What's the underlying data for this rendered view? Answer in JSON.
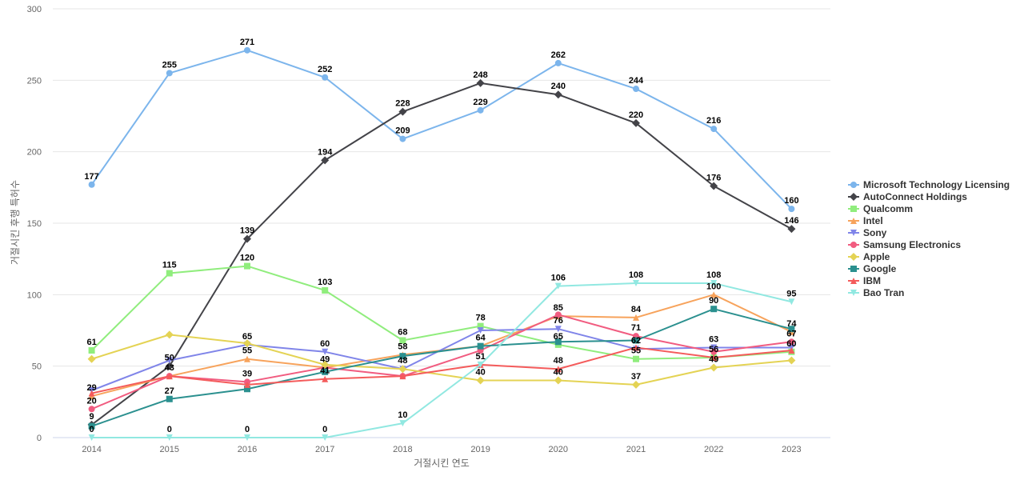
{
  "chart_data": {
    "type": "line",
    "title": "",
    "xlabel": "거절시킨 연도",
    "ylabel": "거절시킨 후행 특허수",
    "categories": [
      "2014",
      "2015",
      "2016",
      "2017",
      "2018",
      "2019",
      "2020",
      "2021",
      "2022",
      "2023"
    ],
    "ylim": [
      0,
      300
    ],
    "yticks": [
      0,
      50,
      100,
      150,
      200,
      250,
      300
    ],
    "grid": true,
    "legend_position": "right",
    "data_labels": true,
    "series": [
      {
        "name": "Microsoft Technology Licensing",
        "color": "#7cb5ec",
        "marker": "circle",
        "values": [
          177,
          255,
          271,
          252,
          209,
          229,
          262,
          244,
          216,
          160
        ]
      },
      {
        "name": "AutoConnect Holdings",
        "color": "#434348",
        "marker": "diamond",
        "values": [
          9,
          50,
          139,
          194,
          228,
          248,
          240,
          220,
          176,
          146
        ]
      },
      {
        "name": "Qualcomm",
        "color": "#90ed7d",
        "marker": "square",
        "values": [
          61,
          115,
          120,
          103,
          68,
          78,
          65,
          55,
          56,
          60
        ]
      },
      {
        "name": "Intel",
        "color": "#f7a35c",
        "marker": "triangle",
        "values": [
          29,
          43,
          55,
          49,
          58,
          64,
          85,
          84,
          100,
          74
        ]
      },
      {
        "name": "Sony",
        "color": "#8085e9",
        "marker": "triangle-down",
        "values": [
          33,
          54,
          65,
          60,
          48,
          75,
          76,
          62,
          63,
          63
        ]
      },
      {
        "name": "Samsung Electronics",
        "color": "#f15c80",
        "marker": "circle",
        "values": [
          20,
          43,
          39,
          49,
          43,
          61,
          86,
          71,
          60,
          67
        ]
      },
      {
        "name": "Apple",
        "color": "#e4d354",
        "marker": "diamond",
        "values": [
          55,
          72,
          66,
          51,
          48,
          40,
          40,
          37,
          49,
          54
        ]
      },
      {
        "name": "Google",
        "color": "#2b908f",
        "marker": "square",
        "values": [
          8,
          27,
          34,
          46,
          57,
          64,
          67,
          68,
          90,
          76
        ]
      },
      {
        "name": "IBM",
        "color": "#f45b5b",
        "marker": "triangle",
        "values": [
          31,
          43,
          37,
          41,
          43,
          51,
          48,
          63,
          56,
          61
        ]
      },
      {
        "name": "Bao Tran",
        "color": "#91e8e1",
        "marker": "triangle-down",
        "values": [
          0,
          0,
          0,
          0,
          10,
          51,
          106,
          108,
          108,
          95
        ]
      }
    ],
    "annotations": [
      {
        "x": "2014",
        "y": 177,
        "text": "177"
      },
      {
        "x": "2015",
        "y": 255,
        "text": "255"
      },
      {
        "x": "2016",
        "y": 271,
        "text": "271"
      },
      {
        "x": "2017",
        "y": 252,
        "text": "252"
      },
      {
        "x": "2018",
        "y": 209,
        "text": "209"
      },
      {
        "x": "2019",
        "y": 229,
        "text": "229"
      },
      {
        "x": "2020",
        "y": 262,
        "text": "262"
      },
      {
        "x": "2021",
        "y": 244,
        "text": "244"
      },
      {
        "x": "2022",
        "y": 216,
        "text": "216"
      },
      {
        "x": "2023",
        "y": 160,
        "text": "160"
      },
      {
        "x": "2014",
        "y": 9,
        "text": "9"
      },
      {
        "x": "2015",
        "y": 50,
        "text": "50"
      },
      {
        "x": "2016",
        "y": 139,
        "text": "139"
      },
      {
        "x": "2017",
        "y": 194,
        "text": "194"
      },
      {
        "x": "2018",
        "y": 228,
        "text": "228"
      },
      {
        "x": "2019",
        "y": 248,
        "text": "248"
      },
      {
        "x": "2020",
        "y": 240,
        "text": "240"
      },
      {
        "x": "2021",
        "y": 220,
        "text": "220"
      },
      {
        "x": "2022",
        "y": 176,
        "text": "176"
      },
      {
        "x": "2023",
        "y": 146,
        "text": "146"
      },
      {
        "x": "2014",
        "y": 61,
        "text": "61"
      },
      {
        "x": "2015",
        "y": 115,
        "text": "115"
      },
      {
        "x": "2016",
        "y": 120,
        "text": "120"
      },
      {
        "x": "2017",
        "y": 103,
        "text": "103"
      },
      {
        "x": "2018",
        "y": 68,
        "text": "68"
      },
      {
        "x": "2019",
        "y": 78,
        "text": "78"
      },
      {
        "x": "2020",
        "y": 106,
        "text": "106"
      },
      {
        "x": "2021",
        "y": 108,
        "text": "108"
      },
      {
        "x": "2022",
        "y": 108,
        "text": "108"
      },
      {
        "x": "2023",
        "y": 95,
        "text": "95"
      },
      {
        "x": "2014",
        "y": 29,
        "text": "29"
      },
      {
        "x": "2015",
        "y": 43,
        "text": "43"
      },
      {
        "x": "2016",
        "y": 65,
        "text": "65"
      },
      {
        "x": "2017",
        "y": 60,
        "text": "60"
      },
      {
        "x": "2018",
        "y": 58,
        "text": "58"
      },
      {
        "x": "2019",
        "y": 64,
        "text": "64"
      },
      {
        "x": "2020",
        "y": 85,
        "text": "85"
      },
      {
        "x": "2021",
        "y": 84,
        "text": "84"
      },
      {
        "x": "2022",
        "y": 100,
        "text": "100"
      },
      {
        "x": "2023",
        "y": 74,
        "text": "74"
      },
      {
        "x": "2014",
        "y": 20,
        "text": "20"
      },
      {
        "x": "2015",
        "y": 27,
        "text": "27"
      },
      {
        "x": "2016",
        "y": 55,
        "text": "55"
      },
      {
        "x": "2017",
        "y": 49,
        "text": "49"
      },
      {
        "x": "2018",
        "y": 48,
        "text": "48"
      },
      {
        "x": "2019",
        "y": 51,
        "text": "51"
      },
      {
        "x": "2020",
        "y": 76,
        "text": "76"
      },
      {
        "x": "2021",
        "y": 71,
        "text": "71"
      },
      {
        "x": "2022",
        "y": 90,
        "text": "90"
      },
      {
        "x": "2023",
        "y": 67,
        "text": "67"
      },
      {
        "x": "2014",
        "y": 0,
        "text": "0"
      },
      {
        "x": "2015",
        "y": 0,
        "text": "0"
      },
      {
        "x": "2016",
        "y": 39,
        "text": "39"
      },
      {
        "x": "2017",
        "y": 41,
        "text": "41"
      },
      {
        "x": "2018",
        "y": 10,
        "text": "10"
      },
      {
        "x": "2019",
        "y": 40,
        "text": "40"
      },
      {
        "x": "2020",
        "y": 65,
        "text": "65"
      },
      {
        "x": "2021",
        "y": 62,
        "text": "62"
      },
      {
        "x": "2022",
        "y": 63,
        "text": "63"
      },
      {
        "x": "2023",
        "y": 60,
        "text": "60"
      },
      {
        "x": "2016",
        "y": 0,
        "text": "0"
      },
      {
        "x": "2017",
        "y": 0,
        "text": "0"
      },
      {
        "x": "2020",
        "y": 48,
        "text": "48"
      },
      {
        "x": "2020",
        "y": 40,
        "text": "40"
      },
      {
        "x": "2021",
        "y": 55,
        "text": "55"
      },
      {
        "x": "2021",
        "y": 37,
        "text": "37"
      },
      {
        "x": "2022",
        "y": 56,
        "text": "56"
      },
      {
        "x": "2022",
        "y": 49,
        "text": "49"
      }
    ]
  }
}
